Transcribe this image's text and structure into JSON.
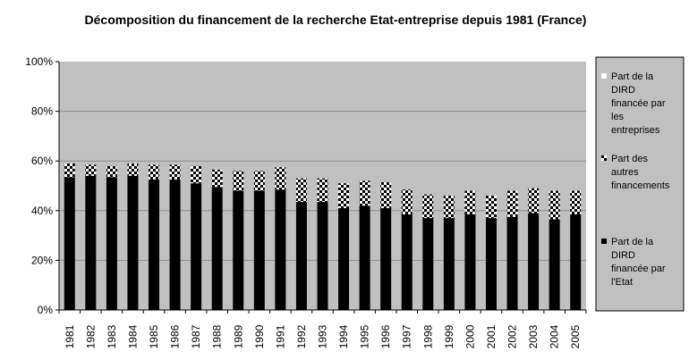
{
  "chart_data": {
    "type": "bar",
    "stacked": true,
    "normalized": true,
    "title": "Décomposition du financement de la recherche Etat-entreprise depuis 1981 (France)",
    "xlabel": "",
    "ylabel": "",
    "ylim": [
      0,
      100
    ],
    "yticks": [
      "0%",
      "20%",
      "40%",
      "60%",
      "80%",
      "100%"
    ],
    "grid": true,
    "legend_position": "right",
    "categories": [
      "1981",
      "1982",
      "1983",
      "1984",
      "1985",
      "1986",
      "1987",
      "1988",
      "1989",
      "1990",
      "1991",
      "1992",
      "1993",
      "1994",
      "1995",
      "1996",
      "1997",
      "1998",
      "1999",
      "2000",
      "2001",
      "2002",
      "2003",
      "2004",
      "2005"
    ],
    "series": [
      {
        "name": "Part de la DIRD financée par l'Etat",
        "legend_lines": [
          "Part de la",
          "DIRD",
          "financée par",
          "l'Etat"
        ],
        "color": "#000000",
        "pattern": "solid",
        "values": [
          53.5,
          54,
          53.5,
          54,
          52.5,
          52.5,
          51,
          49.5,
          48,
          48,
          48.5,
          43.5,
          43.5,
          41,
          42,
          41,
          38.5,
          37,
          37,
          38.5,
          37,
          37.5,
          39,
          36.5,
          38.5
        ]
      },
      {
        "name": "Part des autres financements",
        "legend_lines": [
          "Part des",
          "autres",
          "financements"
        ],
        "color": "#000000",
        "pattern": "checker",
        "values": [
          5.5,
          4.5,
          4.5,
          5,
          6,
          6,
          7,
          7,
          8,
          8,
          9,
          9.5,
          9.5,
          10,
          10,
          10.5,
          10,
          9.5,
          9,
          9.5,
          9,
          10.5,
          10,
          11.5,
          9.5
        ]
      },
      {
        "name": "Part de la DIRD financée par les entreprises",
        "legend_lines": [
          "Part de la",
          "DIRD",
          "financée par",
          "les",
          "entreprises"
        ],
        "color": "#c0c0c0",
        "pattern": "solid",
        "values": [
          41,
          41.5,
          42,
          41,
          41.5,
          41.5,
          42,
          43.5,
          44,
          44,
          42.5,
          47,
          47,
          49,
          48,
          48.5,
          51.5,
          53.5,
          54,
          52,
          54,
          52,
          51,
          52,
          52
        ]
      }
    ]
  }
}
